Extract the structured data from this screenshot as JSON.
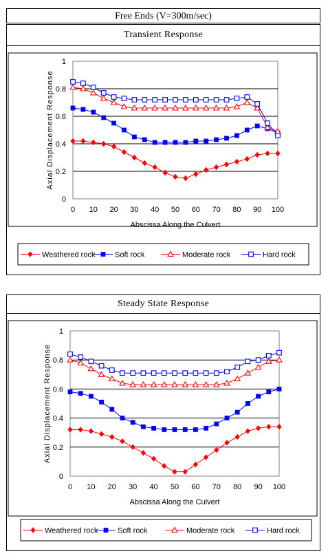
{
  "header": {
    "title": "Free Ends  (V=300m/sec)"
  },
  "chart_data": [
    {
      "type": "line",
      "title": "Transient Response",
      "xlabel": "Abscissa Along the Culvert",
      "ylabel": "Axial Displacement Response",
      "xlim": [
        0,
        100
      ],
      "ylim": [
        0,
        1
      ],
      "x_ticks": [
        "0",
        "10",
        "20",
        "30",
        "40",
        "50",
        "60",
        "70",
        "80",
        "90",
        "100"
      ],
      "y_ticks": [
        "0",
        "0.2",
        "0.4",
        "0.6",
        "0.8",
        "1"
      ],
      "grid": "horizontal",
      "legend_position": "bottom",
      "x": [
        0,
        5,
        10,
        15,
        20,
        25,
        30,
        35,
        40,
        45,
        50,
        55,
        60,
        65,
        70,
        75,
        80,
        85,
        90,
        95,
        100
      ],
      "series": [
        {
          "name": "Weathered rock",
          "color": "#ff0000",
          "marker": "diamond",
          "values": [
            0.42,
            0.42,
            0.41,
            0.4,
            0.38,
            0.34,
            0.3,
            0.26,
            0.23,
            0.19,
            0.16,
            0.15,
            0.18,
            0.21,
            0.23,
            0.25,
            0.27,
            0.29,
            0.32,
            0.33,
            0.33
          ]
        },
        {
          "name": "Soft rock",
          "color": "#0000ff",
          "marker": "square",
          "values": [
            0.66,
            0.65,
            0.63,
            0.59,
            0.55,
            0.5,
            0.45,
            0.43,
            0.41,
            0.41,
            0.41,
            0.41,
            0.42,
            0.42,
            0.43,
            0.44,
            0.46,
            0.5,
            0.53,
            0.51,
            0.48
          ]
        },
        {
          "name": "Moderate rock",
          "color": "#ff0000",
          "marker": "triangle-open",
          "values": [
            0.81,
            0.8,
            0.77,
            0.73,
            0.7,
            0.67,
            0.66,
            0.66,
            0.66,
            0.66,
            0.66,
            0.66,
            0.66,
            0.66,
            0.66,
            0.66,
            0.67,
            0.7,
            0.66,
            0.52,
            0.49
          ]
        },
        {
          "name": "Hard rock",
          "color": "#0000ff",
          "marker": "square-open",
          "values": [
            0.85,
            0.84,
            0.81,
            0.77,
            0.74,
            0.73,
            0.72,
            0.72,
            0.72,
            0.72,
            0.72,
            0.72,
            0.72,
            0.72,
            0.72,
            0.72,
            0.73,
            0.74,
            0.69,
            0.55,
            0.46
          ]
        }
      ]
    },
    {
      "type": "line",
      "title": "Steady State Response",
      "xlabel": "Abscissa Along the Culvert",
      "ylabel": "Axial Displacement Response",
      "xlim": [
        0,
        100
      ],
      "ylim": [
        0,
        1
      ],
      "x_ticks": [
        "0",
        "10",
        "20",
        "30",
        "40",
        "50",
        "60",
        "70",
        "80",
        "90",
        "100"
      ],
      "y_ticks": [
        "0",
        "0.2",
        "0.4",
        "0.6",
        "0.8",
        "1"
      ],
      "grid": "horizontal",
      "legend_position": "bottom",
      "x": [
        0,
        5,
        10,
        15,
        20,
        25,
        30,
        35,
        40,
        45,
        50,
        55,
        60,
        65,
        70,
        75,
        80,
        85,
        90,
        95,
        100
      ],
      "series": [
        {
          "name": "Weathered rock",
          "color": "#ff0000",
          "marker": "diamond",
          "values": [
            0.32,
            0.32,
            0.31,
            0.29,
            0.27,
            0.24,
            0.2,
            0.16,
            0.12,
            0.07,
            0.03,
            0.03,
            0.08,
            0.13,
            0.18,
            0.23,
            0.27,
            0.31,
            0.33,
            0.34,
            0.34
          ]
        },
        {
          "name": "Soft rock",
          "color": "#0000ff",
          "marker": "square",
          "values": [
            0.58,
            0.57,
            0.55,
            0.51,
            0.46,
            0.4,
            0.37,
            0.34,
            0.33,
            0.32,
            0.32,
            0.32,
            0.32,
            0.33,
            0.36,
            0.4,
            0.44,
            0.5,
            0.55,
            0.58,
            0.6
          ]
        },
        {
          "name": "Moderate rock",
          "color": "#ff0000",
          "marker": "triangle-open",
          "values": [
            0.8,
            0.78,
            0.74,
            0.7,
            0.67,
            0.64,
            0.63,
            0.63,
            0.63,
            0.63,
            0.63,
            0.63,
            0.63,
            0.63,
            0.63,
            0.64,
            0.67,
            0.71,
            0.75,
            0.79,
            0.8
          ]
        },
        {
          "name": "Hard rock",
          "color": "#0000ff",
          "marker": "square-open",
          "values": [
            0.84,
            0.82,
            0.79,
            0.76,
            0.73,
            0.71,
            0.71,
            0.71,
            0.71,
            0.71,
            0.71,
            0.71,
            0.71,
            0.71,
            0.71,
            0.72,
            0.75,
            0.79,
            0.8,
            0.83,
            0.85
          ]
        }
      ]
    }
  ]
}
